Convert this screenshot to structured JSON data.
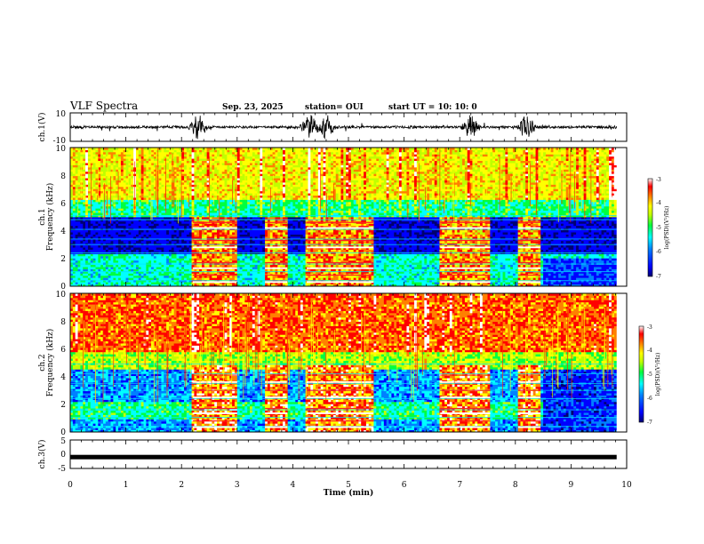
{
  "header": {
    "title": "VLF Spectra",
    "date": "Sep. 23, 2025",
    "station": "station= OUI",
    "start": "start  UT =   10: 10: 0"
  },
  "colors": {
    "spectrum_scale": [
      "#000070",
      "#0000ff",
      "#0080ff",
      "#00ffff",
      "#00ff40",
      "#c0ff00",
      "#ffff00",
      "#ff8000",
      "#ff0000",
      "#ffffff"
    ],
    "waveform": "#000000"
  },
  "chart_data": [
    {
      "type": "line",
      "panel": "ch1-waveform",
      "ylabel": "ch.1(V)",
      "ylim": [
        -10,
        10
      ],
      "yticks": [
        "10",
        "-10"
      ],
      "xlim": [
        0,
        10
      ],
      "bursts_min": [
        2.3,
        4.3,
        4.6,
        7.2,
        8.2
      ]
    },
    {
      "type": "heatmap",
      "panel": "ch1-spectrogram",
      "ylabel_line1": "ch.1",
      "ylabel_line2": "Frequency (kHz)",
      "ylim": [
        0,
        10
      ],
      "yticks": [
        "10",
        "8",
        "6",
        "4",
        "2",
        "0"
      ],
      "xlim": [
        0,
        10
      ],
      "data_end_min": 9.82,
      "signal_segments_min": [
        [
          2.2,
          3.0
        ],
        [
          3.5,
          3.9
        ],
        [
          4.25,
          5.45
        ],
        [
          6.65,
          7.55
        ],
        [
          8.05,
          8.45
        ]
      ],
      "colorbar": {
        "label": "log(PSD)(V²/Hz)",
        "ticks": [
          "-3",
          "-4",
          "-5",
          "-6",
          "-7"
        ],
        "range": [
          -7,
          -3
        ]
      }
    },
    {
      "type": "heatmap",
      "panel": "ch2-spectrogram",
      "ylabel_line1": "ch.2",
      "ylabel_line2": "Frequency (kHz)",
      "ylim": [
        0,
        10
      ],
      "yticks": [
        "10",
        "8",
        "6",
        "4",
        "2",
        "0"
      ],
      "xlim": [
        0,
        10
      ],
      "data_end_min": 9.82,
      "signal_segments_min": [
        [
          2.2,
          3.0
        ],
        [
          3.5,
          3.9
        ],
        [
          4.25,
          5.45
        ],
        [
          6.65,
          7.55
        ],
        [
          8.05,
          8.45
        ]
      ],
      "colorbar": {
        "label": "log(PSD)(V²/Hz)",
        "ticks": [
          "-3",
          "-4",
          "-5",
          "-6",
          "-7"
        ],
        "range": [
          -7,
          -3
        ]
      }
    },
    {
      "type": "line",
      "panel": "ch3-waveform",
      "ylabel": "ch.3(V)",
      "ylim": [
        -5,
        5
      ],
      "yticks": [
        "5",
        "0",
        "-5"
      ],
      "xlim": [
        0,
        10
      ],
      "constant_value": -1,
      "xlabel": "Time  (min)",
      "xticks": [
        "0",
        "1",
        "2",
        "3",
        "4",
        "5",
        "6",
        "7",
        "8",
        "9",
        "10"
      ]
    }
  ]
}
